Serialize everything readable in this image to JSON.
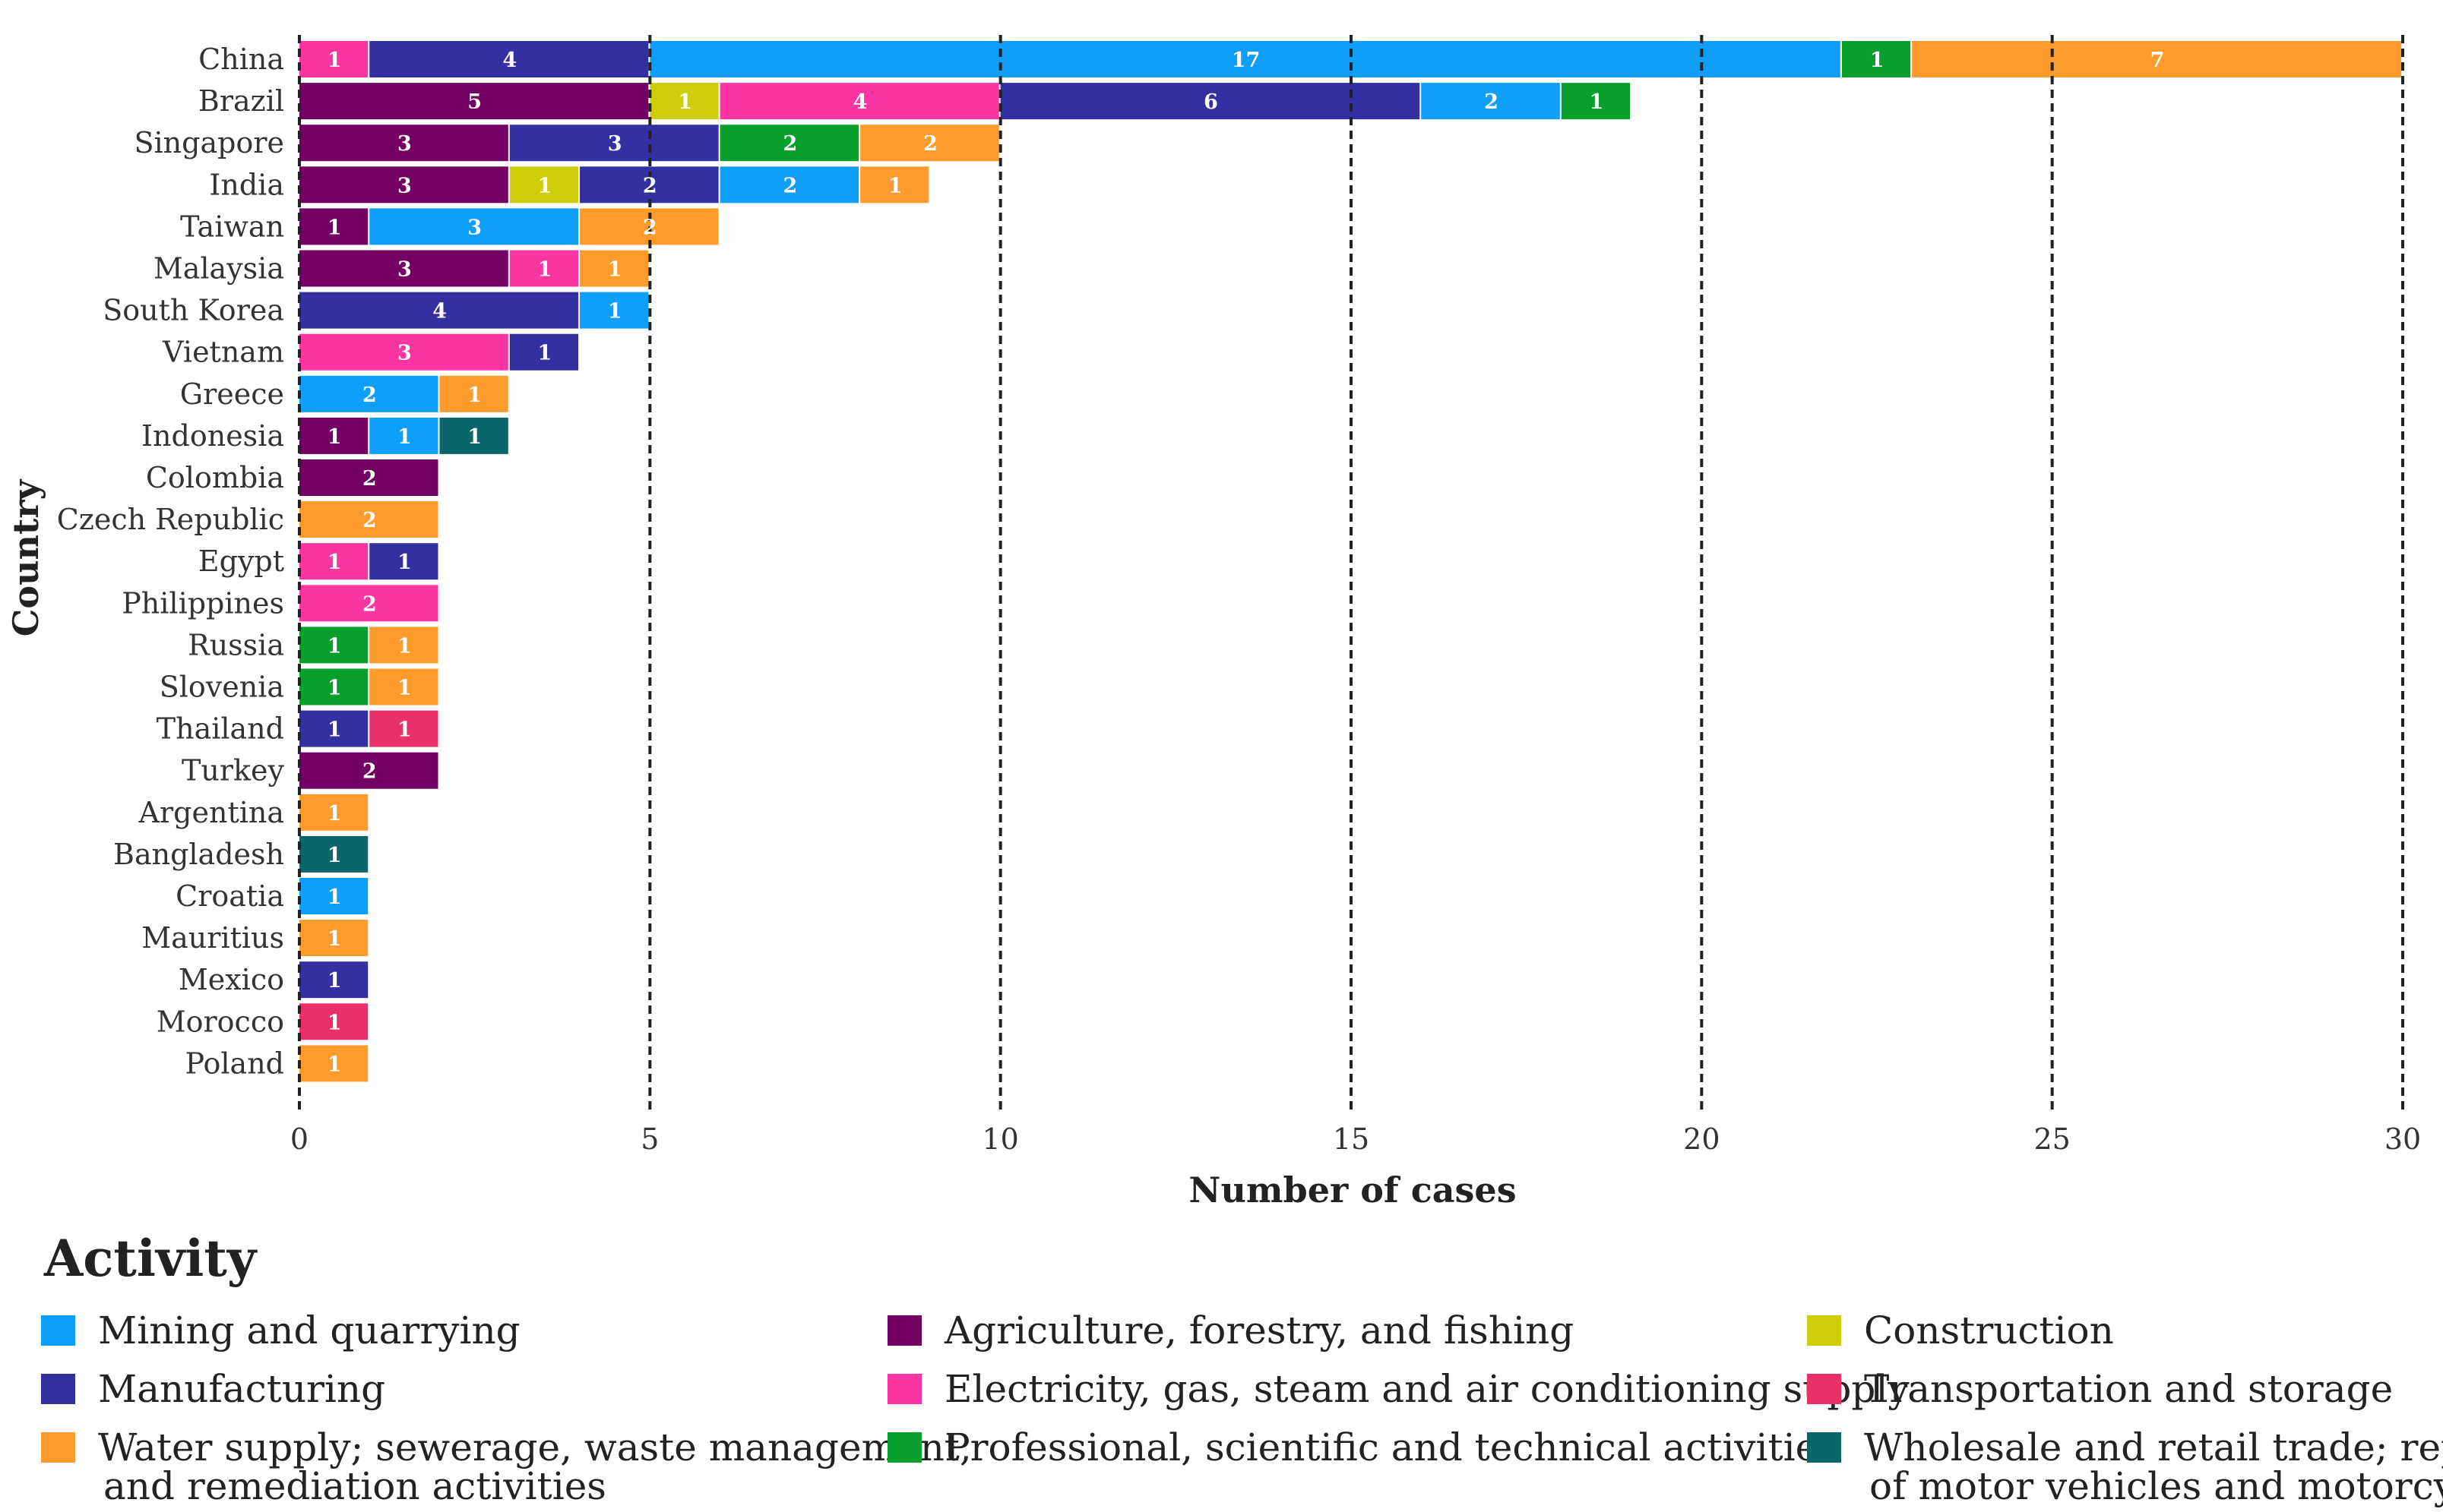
{
  "chart_data": {
    "type": "bar",
    "orientation": "horizontal",
    "stacked": true,
    "xlabel": "Number of cases",
    "ylabel": "Country",
    "xlim": [
      0,
      30
    ],
    "x_ticks": [
      0,
      5,
      10,
      15,
      20,
      25,
      30
    ],
    "gridlines": "vertical dashed at major ticks",
    "legend_title": "Activity",
    "legend_position": "bottom",
    "categories": [
      "China",
      "Brazil",
      "Singapore",
      "India",
      "Taiwan",
      "Malaysia",
      "South Korea",
      "Vietnam",
      "Greece",
      "Indonesia",
      "Colombia",
      "Czech Republic",
      "Egypt",
      "Philippines",
      "Russia",
      "Slovenia",
      "Thailand",
      "Turkey",
      "Argentina",
      "Bangladesh",
      "Croatia",
      "Mauritius",
      "Mexico",
      "Morocco",
      "Poland"
    ],
    "series": [
      {
        "key": "mining",
        "name": "Mining and quarrying",
        "color": "#0f9ffb"
      },
      {
        "key": "manufacturing",
        "name": "Manufacturing",
        "color": "#3330a2"
      },
      {
        "key": "water",
        "name": "Water supply; sewerage, waste management,",
        "name_line2": "and remediation activities",
        "color": "#fd9b2c"
      },
      {
        "key": "agriculture",
        "name": "Agriculture, forestry, and fishing",
        "color": "#720163"
      },
      {
        "key": "electricity",
        "name": "Electricity, gas, steam and air conditioning supply",
        "color": "#fb35a2"
      },
      {
        "key": "professional",
        "name": "Professional, scientific and technical activities",
        "color": "#099f2d"
      },
      {
        "key": "construction",
        "name": "Construction",
        "color": "#cdcd0a"
      },
      {
        "key": "transportation",
        "name": "Transportation and storage",
        "color": "#ea3068"
      },
      {
        "key": "wholesale",
        "name": "Wholesale and retail trade; repair",
        "name_line2": "of motor vehicles and motorcycles",
        "color": "#0b666a"
      }
    ],
    "stacks": [
      [
        [
          "electricity",
          1
        ],
        [
          "manufacturing",
          4
        ],
        [
          "mining",
          17
        ],
        [
          "professional",
          1
        ],
        [
          "water",
          7
        ]
      ],
      [
        [
          "agriculture",
          5
        ],
        [
          "construction",
          1
        ],
        [
          "electricity",
          4
        ],
        [
          "manufacturing",
          6
        ],
        [
          "mining",
          2
        ],
        [
          "professional",
          1
        ]
      ],
      [
        [
          "agriculture",
          3
        ],
        [
          "manufacturing",
          3
        ],
        [
          "professional",
          2
        ],
        [
          "water",
          2
        ]
      ],
      [
        [
          "agriculture",
          3
        ],
        [
          "construction",
          1
        ],
        [
          "manufacturing",
          2
        ],
        [
          "mining",
          2
        ],
        [
          "water",
          1
        ]
      ],
      [
        [
          "agriculture",
          1
        ],
        [
          "mining",
          3
        ],
        [
          "water",
          2
        ]
      ],
      [
        [
          "agriculture",
          3
        ],
        [
          "electricity",
          1
        ],
        [
          "water",
          1
        ]
      ],
      [
        [
          "manufacturing",
          4
        ],
        [
          "mining",
          1
        ]
      ],
      [
        [
          "electricity",
          3
        ],
        [
          "manufacturing",
          1
        ]
      ],
      [
        [
          "mining",
          2
        ],
        [
          "water",
          1
        ]
      ],
      [
        [
          "agriculture",
          1
        ],
        [
          "mining",
          1
        ],
        [
          "wholesale",
          1
        ]
      ],
      [
        [
          "agriculture",
          2
        ]
      ],
      [
        [
          "water",
          2
        ]
      ],
      [
        [
          "electricity",
          1
        ],
        [
          "manufacturing",
          1
        ]
      ],
      [
        [
          "electricity",
          2
        ]
      ],
      [
        [
          "professional",
          1
        ],
        [
          "water",
          1
        ]
      ],
      [
        [
          "professional",
          1
        ],
        [
          "water",
          1
        ]
      ],
      [
        [
          "manufacturing",
          1
        ],
        [
          "transportation",
          1
        ]
      ],
      [
        [
          "agriculture",
          2
        ]
      ],
      [
        [
          "water",
          1
        ]
      ],
      [
        [
          "wholesale",
          1
        ]
      ],
      [
        [
          "mining",
          1
        ]
      ],
      [
        [
          "water",
          1
        ]
      ],
      [
        [
          "manufacturing",
          1
        ]
      ],
      [
        [
          "transportation",
          1
        ]
      ],
      [
        [
          "water",
          1
        ]
      ]
    ]
  }
}
